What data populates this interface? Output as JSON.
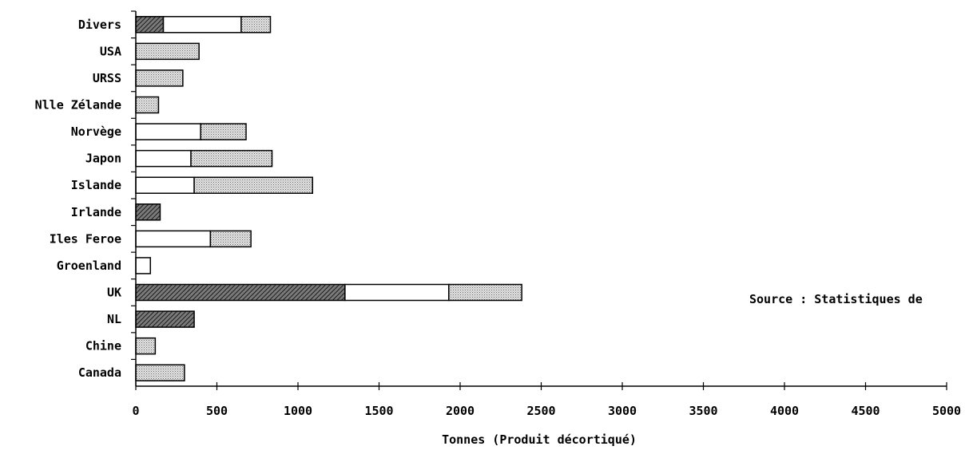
{
  "chart_data": {
    "type": "bar",
    "orientation": "horizontal",
    "stacked": true,
    "categories": [
      "Divers",
      "USA",
      "URSS",
      "Nlle Zélande",
      "Norvège",
      "Japon",
      "Islande",
      "Irlande",
      "Iles Feroe",
      "Groenland",
      "UK",
      "NL",
      "Chine",
      "Canada"
    ],
    "series": [
      {
        "pattern": "hatched",
        "values": [
          170,
          0,
          0,
          0,
          0,
          0,
          0,
          150,
          0,
          0,
          1290,
          360,
          0,
          0
        ]
      },
      {
        "pattern": "white",
        "values": [
          480,
          0,
          0,
          0,
          400,
          340,
          360,
          0,
          460,
          90,
          640,
          0,
          0,
          0
        ]
      },
      {
        "pattern": "dotted",
        "values": [
          180,
          390,
          290,
          140,
          280,
          500,
          730,
          0,
          250,
          0,
          450,
          0,
          120,
          300
        ]
      }
    ],
    "xlabel": "Tonnes (Produit décortiqué)",
    "xlim": [
      0,
      5000
    ],
    "xticks": [
      "0",
      "500",
      "1000",
      "1500",
      "2000",
      "2500",
      "3000",
      "3500",
      "4000",
      "4500",
      "5000"
    ],
    "grid": false,
    "annotation": "Source : Statistiques de"
  }
}
